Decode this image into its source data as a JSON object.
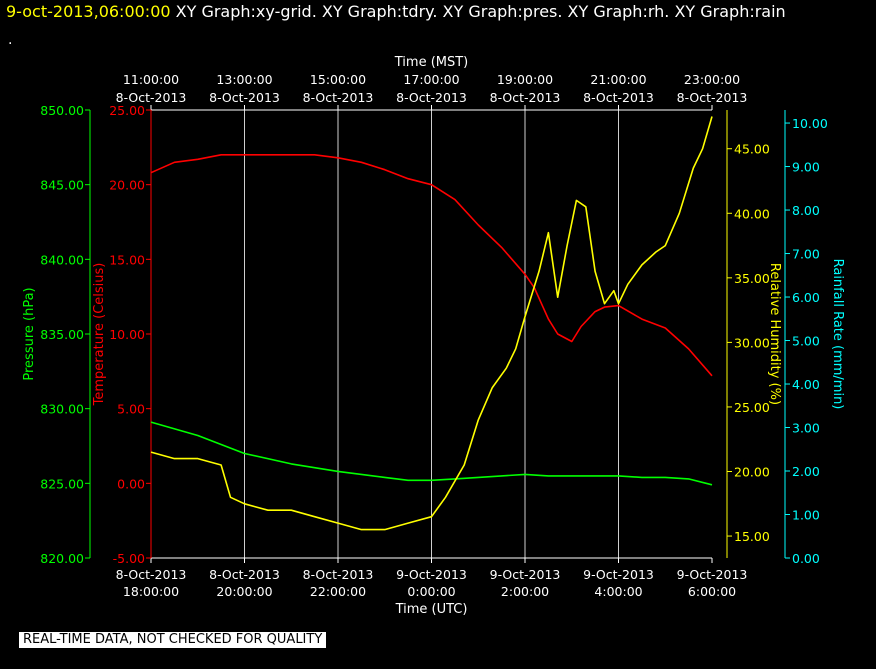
{
  "header": {
    "timestamp": "9-oct-2013,06:00:00",
    "graphs": "  XY Graph:xy-grid.  XY Graph:tdry.  XY Graph:pres.  XY Graph:rh.  XY Graph:rain",
    "second_line": "."
  },
  "footer": {
    "notice": "REAL-TIME DATA, NOT CHECKED FOR QUALITY"
  },
  "colors": {
    "pressure": "#00ff00",
    "temperature": "#ff0000",
    "humidity": "#ffff00",
    "rain": "#00ffff",
    "grid": "#ffffff"
  },
  "chart_data": {
    "type": "line",
    "top_axis": {
      "title": "Time (MST)",
      "ticks": [
        {
          "time": "11:00:00",
          "date": "8-Oct-2013"
        },
        {
          "time": "13:00:00",
          "date": "8-Oct-2013"
        },
        {
          "time": "15:00:00",
          "date": "8-Oct-2013"
        },
        {
          "time": "17:00:00",
          "date": "8-Oct-2013"
        },
        {
          "time": "19:00:00",
          "date": "8-Oct-2013"
        },
        {
          "time": "21:00:00",
          "date": "8-Oct-2013"
        },
        {
          "time": "23:00:00",
          "date": "8-Oct-2013"
        }
      ]
    },
    "bottom_axis": {
      "title": "Time (UTC)",
      "ticks": [
        {
          "date": "8-Oct-2013",
          "time": "18:00:00"
        },
        {
          "date": "8-Oct-2013",
          "time": "20:00:00"
        },
        {
          "date": "8-Oct-2013",
          "time": "22:00:00"
        },
        {
          "date": "9-Oct-2013",
          "time": "0:00:00"
        },
        {
          "date": "9-Oct-2013",
          "time": "2:00:00"
        },
        {
          "date": "9-Oct-2013",
          "time": "4:00:00"
        },
        {
          "date": "9-Oct-2013",
          "time": "6:00:00"
        }
      ],
      "xlim_utc_hours": [
        18,
        30
      ]
    },
    "axes": {
      "pressure": {
        "label": "Pressure (hPa)",
        "ylim": [
          820,
          850
        ],
        "ticks": [
          "820.00",
          "825.00",
          "830.00",
          "835.00",
          "840.00",
          "845.00",
          "850.00"
        ]
      },
      "temperature": {
        "label": "Temperature (Celsius)",
        "ylim": [
          -5,
          25
        ],
        "ticks": [
          "-5.00",
          "0.00",
          "5.00",
          "10.00",
          "15.00",
          "20.00",
          "25.00"
        ]
      },
      "humidity": {
        "label": "Relative Humidity (%)",
        "ylim": [
          13.3,
          48
        ],
        "ticks": [
          "15.00",
          "20.00",
          "25.00",
          "30.00",
          "35.00",
          "40.00",
          "45.00"
        ]
      },
      "rain": {
        "label": "Rainfall Rate (mm/min)",
        "ylim": [
          0,
          10.3
        ],
        "ticks": [
          "0.00",
          "1.00",
          "2.00",
          "3.00",
          "4.00",
          "5.00",
          "6.00",
          "7.00",
          "8.00",
          "9.00",
          "10.00"
        ]
      }
    },
    "series": [
      {
        "name": "tdry",
        "axis": "temperature",
        "x": [
          18.0,
          18.5,
          19.0,
          19.5,
          20.0,
          20.5,
          21.0,
          21.5,
          22.0,
          22.5,
          23.0,
          23.5,
          24.0,
          24.5,
          25.0,
          25.5,
          26.0,
          26.2,
          26.5,
          26.7,
          27.0,
          27.2,
          27.5,
          27.7,
          28.0,
          28.5,
          29.0,
          29.5,
          30.0
        ],
        "y": [
          20.8,
          21.5,
          21.7,
          22.0,
          22.0,
          22.0,
          22.0,
          22.0,
          21.8,
          21.5,
          21.0,
          20.4,
          20.0,
          19.0,
          17.3,
          15.8,
          14.0,
          13.1,
          11.0,
          10.0,
          9.5,
          10.5,
          11.5,
          11.8,
          11.9,
          11.0,
          10.4,
          9.0,
          7.2
        ]
      },
      {
        "name": "pres",
        "axis": "pressure",
        "x": [
          18.0,
          19.0,
          20.0,
          21.0,
          22.0,
          23.0,
          23.5,
          24.0,
          24.5,
          25.0,
          25.5,
          26.0,
          26.5,
          27.0,
          27.5,
          28.0,
          28.5,
          29.0,
          29.5,
          30.0
        ],
        "y": [
          829.1,
          828.2,
          827.0,
          826.3,
          825.8,
          825.4,
          825.2,
          825.2,
          825.3,
          825.4,
          825.5,
          825.6,
          825.5,
          825.5,
          825.5,
          825.5,
          825.4,
          825.4,
          825.3,
          824.9
        ]
      },
      {
        "name": "rh",
        "axis": "humidity",
        "x": [
          18.0,
          18.5,
          19.0,
          19.5,
          19.7,
          20.0,
          20.5,
          21.0,
          21.5,
          22.0,
          22.5,
          23.0,
          23.5,
          24.0,
          24.3,
          24.7,
          25.0,
          25.3,
          25.6,
          25.8,
          26.0,
          26.3,
          26.5,
          26.7,
          26.9,
          27.1,
          27.3,
          27.5,
          27.7,
          27.9,
          28.0,
          28.2,
          28.5,
          28.8,
          29.0,
          29.3,
          29.6,
          29.8,
          30.0
        ],
        "y": [
          21.5,
          21.0,
          21.0,
          20.5,
          18.0,
          17.5,
          17.0,
          17.0,
          16.5,
          16.0,
          15.5,
          15.5,
          16.0,
          16.5,
          18.0,
          20.5,
          24.0,
          26.5,
          28.0,
          29.5,
          32.0,
          35.5,
          38.5,
          33.5,
          37.5,
          41.0,
          40.5,
          35.5,
          33.0,
          34.0,
          33.0,
          34.5,
          36.0,
          37.0,
          37.5,
          40.0,
          43.5,
          45.0,
          47.5
        ]
      },
      {
        "name": "rain",
        "axis": "rain",
        "x": [],
        "y": []
      }
    ]
  }
}
